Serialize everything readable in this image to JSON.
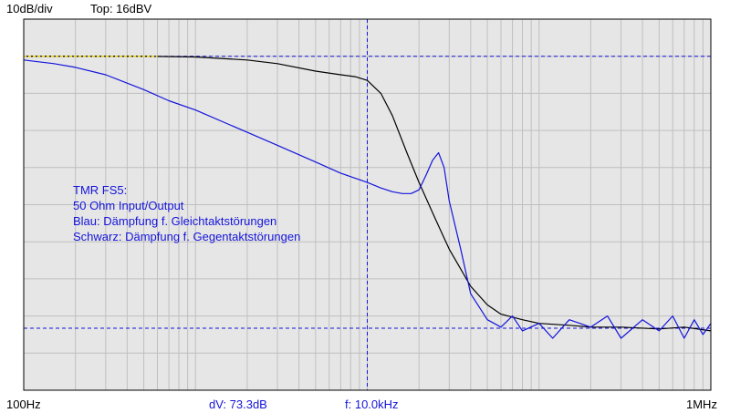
{
  "header": {
    "scale": "10dB/div",
    "top": "Top:  16dBV"
  },
  "footer": {
    "x_min": "100Hz",
    "dv": "dV: 73.3dB",
    "freq": "f: 10.0kHz",
    "x_max": "1MHz"
  },
  "annotation": [
    "TMR FS5:",
    "50 Ohm Input/Output",
    "Blau: Dämpfung f. Gleichtaktstörungen",
    "Schwarz: Dämpfung f. Gegentaktstörungen"
  ],
  "colors": {
    "blue": "#1414dc",
    "black": "#000000",
    "yellow": "#e8d200",
    "grid": "#bfbfbf",
    "bg": "#e6e6e6"
  },
  "chart_data": {
    "type": "line",
    "x_scale": "log",
    "xlim": [
      100,
      1000000
    ],
    "ylim": [
      -84,
      16
    ],
    "y_unit": "dBV",
    "cursor_x": 10000,
    "cursor_y": [
      6,
      -67.3
    ],
    "series": [
      {
        "color": "#000000",
        "x": [
          100,
          200,
          300,
          500,
          1000,
          2000,
          3000,
          5000,
          7000,
          8500,
          10000,
          12000,
          14000,
          17000,
          20000,
          25000,
          30000,
          40000,
          50000,
          60000,
          80000,
          100000,
          150000,
          200000,
          300000,
          500000,
          700000,
          1000000
        ],
        "y": [
          6,
          6,
          6,
          6,
          5.8,
          5,
          4,
          2,
          1,
          0.5,
          -0.5,
          -4,
          -10,
          -20,
          -28,
          -38,
          -46,
          -56,
          -61,
          -63.5,
          -65,
          -66,
          -66.5,
          -67,
          -67,
          -67.5,
          -67,
          -68
        ]
      },
      {
        "color": "#1414dc",
        "x": [
          100,
          150,
          200,
          300,
          500,
          700,
          1000,
          1500,
          2000,
          3000,
          5000,
          7000,
          10000,
          12000,
          14000,
          16000,
          18000,
          20000,
          22000,
          24000,
          26000,
          28000,
          30000,
          35000,
          40000,
          50000,
          60000,
          70000,
          80000,
          100000,
          120000,
          150000,
          200000,
          250000,
          300000,
          400000,
          500000,
          600000,
          700000,
          800000,
          900000,
          1000000
        ],
        "y": [
          5,
          4,
          3,
          1,
          -3,
          -6,
          -8.5,
          -12,
          -14.5,
          -18,
          -22.5,
          -25.5,
          -28,
          -29.5,
          -30.5,
          -31,
          -31,
          -30,
          -26,
          -22,
          -20,
          -24,
          -33,
          -46,
          -58,
          -65,
          -67,
          -64,
          -68,
          -66,
          -70,
          -65,
          -67,
          -64,
          -70,
          -65,
          -68,
          -64,
          -70,
          -65,
          -69,
          -66
        ]
      },
      {
        "color": "#e8d200",
        "x": [
          100,
          600
        ],
        "y": [
          6,
          6
        ]
      }
    ]
  }
}
